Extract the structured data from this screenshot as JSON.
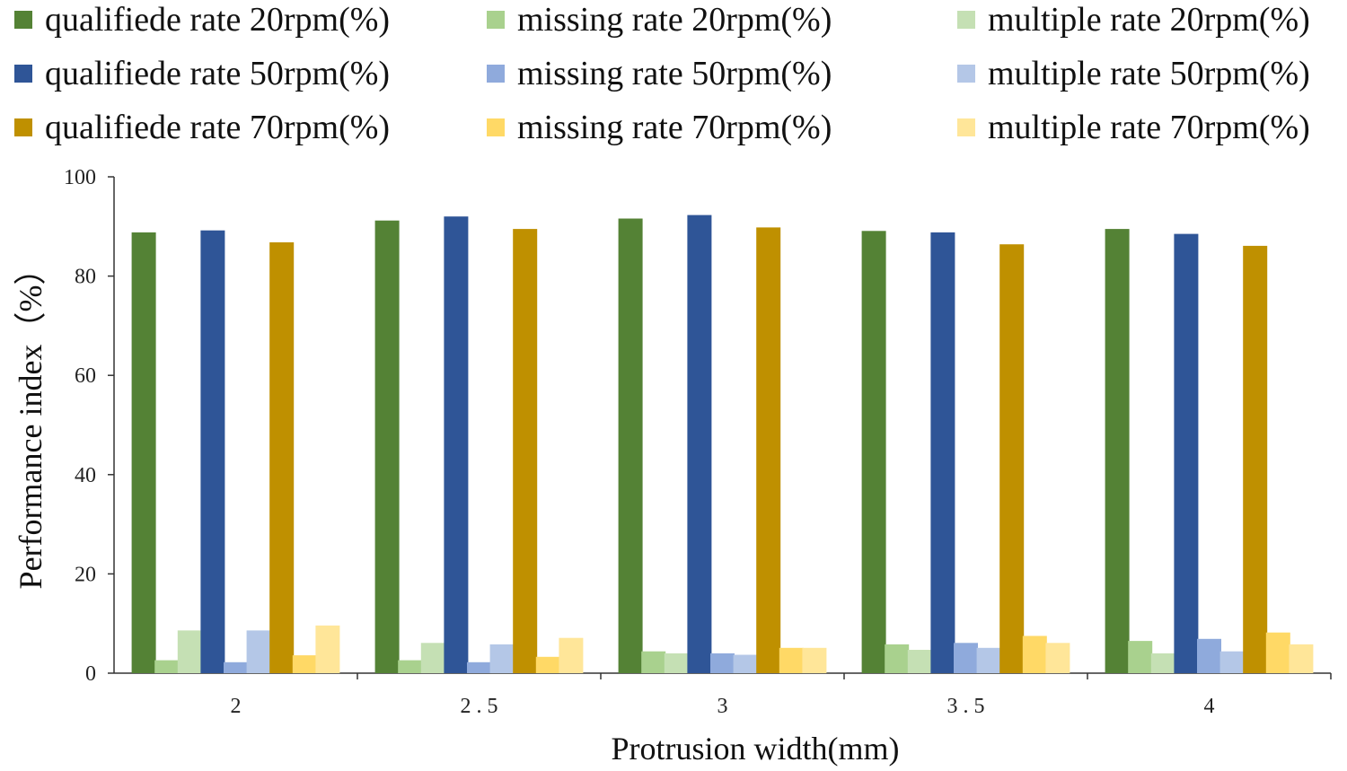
{
  "chart_data": {
    "type": "bar",
    "title": "",
    "xlabel": "Protrusion width(mm)",
    "ylabel": "Performance index（%）",
    "ylim": [
      0,
      100
    ],
    "yticks": [
      0,
      20,
      40,
      60,
      80,
      100
    ],
    "ytick_labels": [
      "0",
      "20",
      "40",
      "60",
      "80",
      "100"
    ],
    "grid": false,
    "legend_position": "top",
    "categories": [
      "2",
      "2.5",
      "3",
      "3.5",
      "4"
    ],
    "category_labels": [
      "2",
      "2 . 5",
      "3",
      "3 . 5",
      "4"
    ],
    "series": [
      {
        "name": "qualifiede rate 20rpm(%)",
        "color": "#548235",
        "values": [
          88.8,
          91.2,
          91.6,
          89.1,
          89.5
        ]
      },
      {
        "name": "missing rate 20rpm(%)",
        "color": "#A9D18E",
        "values": [
          2.6,
          2.6,
          4.4,
          5.8,
          6.5
        ]
      },
      {
        "name": "multiple rate 20rpm(%)",
        "color": "#C5E0B4",
        "values": [
          8.6,
          6.1,
          4.0,
          4.7,
          4.0
        ]
      },
      {
        "name": "qualifiede rate 50rpm(%)",
        "color": "#2F5597",
        "values": [
          89.2,
          92.0,
          92.3,
          88.8,
          88.5
        ]
      },
      {
        "name": "missing rate 50rpm(%)",
        "color": "#8FAADC",
        "values": [
          2.2,
          2.2,
          4.0,
          6.1,
          6.9
        ]
      },
      {
        "name": "multiple rate 50rpm(%)",
        "color": "#B4C7E7",
        "values": [
          8.6,
          5.8,
          3.7,
          5.1,
          4.4
        ]
      },
      {
        "name": "qualifiede rate 70rpm(%)",
        "color": "#BF9000",
        "values": [
          86.8,
          89.5,
          89.8,
          86.4,
          86.1
        ]
      },
      {
        "name": "missing rate 70rpm(%)",
        "color": "#FFD966",
        "values": [
          3.6,
          3.3,
          5.1,
          7.5,
          8.2
        ]
      },
      {
        "name": "multiple rate 70rpm(%)",
        "color": "#FFE699",
        "values": [
          9.6,
          7.1,
          5.1,
          6.1,
          5.8
        ]
      }
    ]
  }
}
